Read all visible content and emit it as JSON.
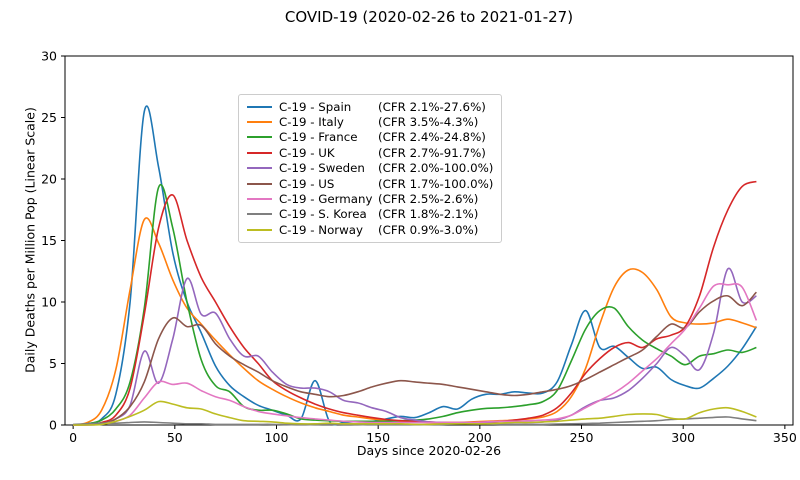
{
  "figure": {
    "title": "COVID-19 (2020-02-26 to 2021-01-27)",
    "background": "#ffffff",
    "spine_color": "#000000",
    "tick_color": "#000000"
  },
  "chart_data": {
    "type": "line",
    "title": "COVID-19 (2020-02-26 to 2021-01-27)",
    "xlabel": "Days since 2020-02-26",
    "ylabel": "Daily Deaths per Million Pop (Linear Scale)",
    "xlim": [
      -4,
      354
    ],
    "ylim": [
      0,
      30
    ],
    "xticks": [
      0,
      50,
      100,
      150,
      200,
      250,
      300,
      350
    ],
    "yticks": [
      0,
      5,
      10,
      15,
      20,
      25,
      30
    ],
    "grid": false,
    "legend_position": "upper center-left",
    "x": [
      0,
      7,
      14,
      21,
      28,
      35,
      42,
      49,
      56,
      63,
      70,
      77,
      84,
      91,
      98,
      105,
      112,
      119,
      126,
      133,
      140,
      147,
      154,
      161,
      168,
      175,
      182,
      189,
      196,
      203,
      210,
      217,
      224,
      231,
      238,
      245,
      252,
      259,
      266,
      273,
      280,
      287,
      294,
      301,
      308,
      315,
      322,
      329,
      336
    ],
    "series": [
      {
        "name": "C-19 - Spain",
        "cfr": "(CFR 2.1%-27.6%)",
        "color": "#1f77b4",
        "values": [
          0,
          0.1,
          0.5,
          2.5,
          10,
          25.5,
          21,
          14,
          10,
          7.5,
          4.8,
          3.2,
          2.3,
          1.6,
          1.2,
          0.8,
          0.5,
          3.6,
          0.3,
          0.2,
          0.3,
          0.3,
          0.5,
          0.7,
          0.6,
          1.0,
          1.5,
          1.3,
          2.1,
          2.5,
          2.5,
          2.7,
          2.6,
          2.6,
          3.5,
          6.5,
          9.3,
          6.3,
          6.4,
          5.5,
          4.6,
          4.7,
          3.7,
          3.2,
          3.0,
          3.8,
          4.8,
          6.2,
          8.0
        ]
      },
      {
        "name": "C-19 - Italy",
        "cfr": "(CFR 3.5%-4.3%)",
        "color": "#ff7f0e",
        "values": [
          0,
          0.2,
          1.2,
          4.5,
          11,
          16.7,
          14.8,
          11.8,
          9.5,
          8.2,
          6.9,
          5.7,
          4.6,
          3.6,
          2.9,
          2.3,
          1.8,
          1.4,
          1.1,
          0.8,
          0.65,
          0.5,
          0.4,
          0.3,
          0.25,
          0.2,
          0.2,
          0.2,
          0.25,
          0.3,
          0.35,
          0.4,
          0.5,
          0.65,
          1.1,
          2.3,
          4.6,
          8.2,
          11.2,
          12.6,
          12.4,
          11.0,
          8.8,
          8.3,
          8.2,
          8.3,
          8.6,
          8.3,
          7.9
        ]
      },
      {
        "name": "C-19 - France",
        "cfr": "(CFR 2.4%-24.8%)",
        "color": "#2ca02c",
        "values": [
          0,
          0.1,
          0.4,
          1.3,
          3.5,
          9.5,
          19.3,
          16.0,
          10.0,
          5.3,
          3.2,
          2.7,
          1.5,
          1.2,
          1.2,
          0.9,
          0.5,
          0.4,
          0.35,
          0.3,
          0.3,
          0.3,
          0.3,
          0.35,
          0.4,
          0.5,
          0.7,
          1.0,
          1.2,
          1.35,
          1.4,
          1.5,
          1.65,
          1.9,
          2.8,
          5.2,
          7.8,
          9.3,
          9.5,
          8.0,
          6.9,
          6.2,
          5.6,
          4.9,
          5.6,
          5.8,
          6.1,
          5.9,
          6.3
        ]
      },
      {
        "name": "C-19 - UK",
        "cfr": "(CFR 2.7%-91.7%)",
        "color": "#d62728",
        "values": [
          0,
          0.05,
          0.2,
          0.8,
          3.0,
          9.0,
          16.0,
          18.7,
          15.0,
          12.0,
          10.0,
          8.0,
          6.3,
          5.0,
          3.6,
          2.8,
          2.2,
          1.7,
          1.3,
          1.0,
          0.8,
          0.6,
          0.45,
          0.35,
          0.3,
          0.25,
          0.2,
          0.2,
          0.2,
          0.25,
          0.3,
          0.4,
          0.55,
          0.8,
          1.4,
          2.6,
          4.2,
          5.4,
          6.3,
          6.7,
          6.3,
          7.0,
          7.3,
          8.0,
          10.5,
          14.5,
          17.5,
          19.4,
          19.8
        ]
      },
      {
        "name": "C-19 - Sweden",
        "cfr": "(CFR 2.0%-100.0%)",
        "color": "#9467bd",
        "values": [
          0,
          0,
          0.1,
          0.5,
          1.6,
          6.0,
          3.4,
          7.0,
          11.9,
          9.0,
          9.1,
          7.0,
          5.6,
          5.6,
          4.3,
          3.3,
          3.0,
          3.0,
          2.7,
          2.0,
          1.8,
          1.4,
          1.1,
          0.6,
          0.4,
          0.25,
          0.2,
          0.15,
          0.15,
          0.15,
          0.15,
          0.2,
          0.2,
          0.25,
          0.4,
          0.8,
          1.5,
          2.0,
          2.2,
          2.8,
          3.8,
          5.0,
          6.3,
          5.6,
          4.5,
          7.5,
          12.7,
          10.0,
          10.5
        ]
      },
      {
        "name": "C-19 - US",
        "cfr": "(CFR 1.7%-100.0%)",
        "color": "#8c564b",
        "values": [
          0,
          0.02,
          0.1,
          0.5,
          1.5,
          3.5,
          7.0,
          8.7,
          8.0,
          8.1,
          6.6,
          5.6,
          4.9,
          4.3,
          3.6,
          3.1,
          2.7,
          2.5,
          2.3,
          2.4,
          2.7,
          3.1,
          3.4,
          3.6,
          3.5,
          3.4,
          3.3,
          3.1,
          2.9,
          2.7,
          2.5,
          2.4,
          2.5,
          2.7,
          2.9,
          3.2,
          3.7,
          4.3,
          4.9,
          5.5,
          6.1,
          7.2,
          8.2,
          7.9,
          9.2,
          10.1,
          10.5,
          9.7,
          10.8
        ]
      },
      {
        "name": "C-19 - Germany",
        "cfr": "(CFR 2.5%-2.6%)",
        "color": "#e377c2",
        "values": [
          0,
          0,
          0.1,
          0.3,
          0.8,
          2.2,
          3.5,
          3.3,
          3.4,
          2.8,
          2.3,
          2.0,
          1.5,
          1.1,
          0.9,
          0.75,
          0.6,
          0.5,
          0.4,
          0.3,
          0.25,
          0.2,
          0.2,
          0.2,
          0.2,
          0.2,
          0.2,
          0.2,
          0.2,
          0.25,
          0.3,
          0.3,
          0.35,
          0.4,
          0.5,
          0.8,
          1.4,
          2.0,
          2.6,
          3.4,
          4.4,
          5.4,
          6.6,
          7.8,
          9.5,
          11.3,
          11.4,
          11.2,
          8.5
        ]
      },
      {
        "name": "C-19 - S. Korea",
        "cfr": "(CFR 1.8%-2.1%)",
        "color": "#7f7f7f",
        "values": [
          0.05,
          0.1,
          0.15,
          0.15,
          0.2,
          0.25,
          0.2,
          0.15,
          0.1,
          0.1,
          0.05,
          0.05,
          0.05,
          0.05,
          0.05,
          0.03,
          0.03,
          0.03,
          0.05,
          0.05,
          0.03,
          0.03,
          0.03,
          0.03,
          0.03,
          0.03,
          0.05,
          0.1,
          0.1,
          0.08,
          0.05,
          0.05,
          0.05,
          0.05,
          0.08,
          0.1,
          0.12,
          0.15,
          0.2,
          0.25,
          0.3,
          0.35,
          0.45,
          0.5,
          0.55,
          0.62,
          0.65,
          0.5,
          0.35
        ]
      },
      {
        "name": "C-19 - Norway",
        "cfr": "(CFR 0.9%-3.0%)",
        "color": "#bcbd22",
        "values": [
          0,
          0,
          0.05,
          0.3,
          0.7,
          1.2,
          1.9,
          1.7,
          1.4,
          1.3,
          0.9,
          0.6,
          0.35,
          0.3,
          0.25,
          0.15,
          0.1,
          0.1,
          0.15,
          0.1,
          0.1,
          0.1,
          0.1,
          0.1,
          0.05,
          0.05,
          0.1,
          0.1,
          0.1,
          0.1,
          0.15,
          0.2,
          0.2,
          0.25,
          0.3,
          0.4,
          0.5,
          0.55,
          0.7,
          0.85,
          0.9,
          0.85,
          0.55,
          0.5,
          1.0,
          1.3,
          1.4,
          1.1,
          0.65
        ]
      }
    ]
  }
}
